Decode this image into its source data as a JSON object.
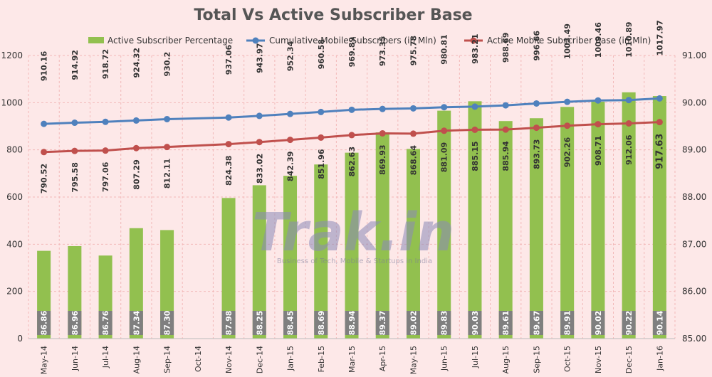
{
  "chart_data": {
    "type": "bar+line",
    "title": "Total Vs Active Subscriber Base",
    "watermark": {
      "brand": "Trak.in",
      "tagline": "Business of Tech, Mobile & Startups in India"
    },
    "categories": [
      "May-14",
      "Jun-14",
      "Jul-14",
      "Aug-14",
      "Sep-14",
      "Oct-14",
      "Nov-14",
      "Dec-14",
      "Jan-15",
      "Feb-15",
      "Mar-15",
      "Apr-15",
      "May-15",
      "Jun-15",
      "Jul-15",
      "Aug-15",
      "Sep-15",
      "Oct-15",
      "Nov-15",
      "Dec-15",
      "Jan-16"
    ],
    "left_axis": {
      "min": 0,
      "max": 1200,
      "ticks": [
        "0",
        "200",
        "400",
        "600",
        "800",
        "1000",
        "1200"
      ]
    },
    "right_axis": {
      "min": 85.0,
      "max": 91.0,
      "ticks": [
        "85.00",
        "86.00",
        "87.00",
        "88.00",
        "89.00",
        "90.00",
        "91.00"
      ]
    },
    "legend_position": "top",
    "grid": true,
    "series": [
      {
        "name": "Active Subscriber Percentage",
        "kind": "bar",
        "axis": "right",
        "color": "#92c04f",
        "values": [
          86.86,
          86.96,
          86.76,
          87.34,
          87.3,
          null,
          87.98,
          88.25,
          88.45,
          88.69,
          88.94,
          89.37,
          89.02,
          89.83,
          90.03,
          89.61,
          89.67,
          89.91,
          90.02,
          90.22,
          90.14
        ],
        "labels": [
          "86.86",
          "86.96",
          "86.76",
          "87.34",
          "87.30",
          "",
          "87.98",
          "88.25",
          "88.45",
          "88.69",
          "88.94",
          "89.37",
          "89.02",
          "89.83",
          "90.03",
          "89.61",
          "89.67",
          "89.91",
          "90.02",
          "90.22",
          "90.14"
        ]
      },
      {
        "name": "Cumulative Mobile Subscribers (in Mln)",
        "kind": "line",
        "axis": "left",
        "color": "#4f81bd",
        "values": [
          910.16,
          914.92,
          918.72,
          924.32,
          930.2,
          null,
          937.06,
          943.97,
          952.34,
          960.58,
          969.89,
          973.35,
          975.78,
          980.81,
          983.21,
          988.69,
          996.66,
          1003.49,
          1009.46,
          1010.89,
          1017.97
        ],
        "labels": [
          "910.16",
          "914.92",
          "918.72",
          "924.32",
          "930.2",
          "",
          "937.06",
          "943.97",
          "952.34",
          "960.58",
          "969.89",
          "973.35",
          "975.78",
          "980.81",
          "983.21",
          "988.69",
          "996.66",
          "1003.49",
          "1009.46",
          "1010.89",
          "1017.97"
        ]
      },
      {
        "name": "Active Mobile Subscriber Base (in Mln)",
        "kind": "line",
        "axis": "left",
        "color": "#c0504d",
        "values": [
          790.52,
          795.58,
          797.06,
          807.29,
          812.11,
          null,
          824.38,
          833.02,
          842.39,
          851.96,
          862.63,
          869.93,
          868.64,
          881.09,
          885.15,
          885.94,
          893.73,
          902.26,
          908.71,
          912.06,
          917.63
        ],
        "labels": [
          "790.52",
          "795.58",
          "797.06",
          "807.29",
          "812.11",
          "",
          "824.38",
          "833.02",
          "842.39",
          "851.96",
          "862.63",
          "869.93",
          "868.64",
          "881.09",
          "885.15",
          "885.94",
          "893.73",
          "902.26",
          "908.71",
          "912.06",
          "917.63"
        ]
      }
    ]
  }
}
